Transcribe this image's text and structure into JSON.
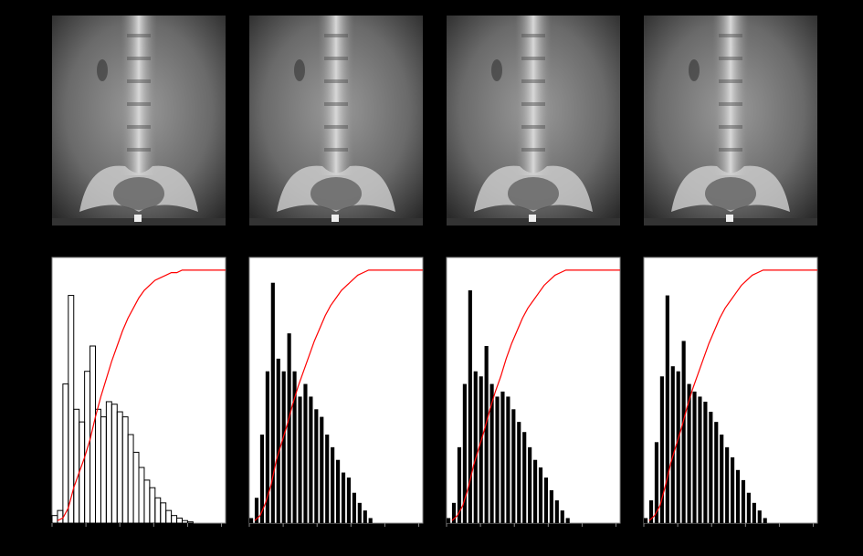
{
  "chart_data": [
    {
      "type": "histogram",
      "histtype": "step",
      "color": "#000000",
      "bins": [
        0,
        8,
        16,
        24,
        32,
        40,
        48,
        56,
        64,
        72,
        80,
        88,
        96,
        104,
        112,
        120,
        128,
        136,
        144,
        152,
        160,
        168,
        176,
        184,
        192,
        200,
        208,
        216,
        224,
        232,
        240,
        248,
        256
      ],
      "counts": [
        0.03,
        0.05,
        0.55,
        0.9,
        0.45,
        0.4,
        0.6,
        0.7,
        0.45,
        0.42,
        0.48,
        0.47,
        0.44,
        0.42,
        0.35,
        0.28,
        0.22,
        0.17,
        0.14,
        0.1,
        0.08,
        0.05,
        0.03,
        0.02,
        0.01,
        0.005,
        0,
        0,
        0,
        0,
        0,
        0
      ],
      "cdf": {
        "color": "#ff0000",
        "x": [
          8,
          16,
          24,
          32,
          40,
          48,
          56,
          64,
          72,
          80,
          88,
          96,
          104,
          112,
          120,
          128,
          136,
          144,
          152,
          160,
          168,
          176,
          184,
          192,
          200,
          208,
          216,
          224,
          232,
          240,
          248,
          256
        ],
        "values": [
          0.01,
          0.02,
          0.06,
          0.14,
          0.2,
          0.26,
          0.33,
          0.42,
          0.5,
          0.57,
          0.64,
          0.7,
          0.76,
          0.81,
          0.85,
          0.89,
          0.92,
          0.94,
          0.96,
          0.97,
          0.98,
          0.99,
          0.99,
          1,
          1,
          1,
          1,
          1,
          1,
          1,
          1,
          1
        ]
      },
      "xlim": [
        0,
        256
      ],
      "ylim": [
        0,
        1.05
      ],
      "xticks": [
        0,
        50,
        100,
        150,
        200,
        250
      ]
    },
    {
      "type": "histogram",
      "histtype": "bar",
      "color": "#000000",
      "bins": [
        0,
        8,
        16,
        24,
        32,
        40,
        48,
        56,
        64,
        72,
        80,
        88,
        96,
        104,
        112,
        120,
        128,
        136,
        144,
        152,
        160,
        168,
        176,
        184,
        192,
        200,
        208,
        216,
        224,
        232,
        240,
        248,
        256
      ],
      "counts": [
        0.02,
        0.1,
        0.35,
        0.6,
        0.95,
        0.65,
        0.6,
        0.75,
        0.6,
        0.5,
        0.55,
        0.5,
        0.45,
        0.42,
        0.35,
        0.3,
        0.25,
        0.2,
        0.18,
        0.12,
        0.08,
        0.05,
        0.02,
        0,
        0,
        0,
        0,
        0,
        0,
        0,
        0,
        0
      ],
      "cdf": {
        "color": "#ff0000",
        "x": [
          8,
          16,
          24,
          32,
          40,
          48,
          56,
          64,
          72,
          80,
          88,
          96,
          104,
          112,
          120,
          128,
          136,
          144,
          152,
          160,
          168,
          176,
          184,
          192,
          200,
          208,
          216,
          224,
          232,
          240,
          248,
          256
        ],
        "values": [
          0.01,
          0.03,
          0.08,
          0.15,
          0.25,
          0.32,
          0.39,
          0.47,
          0.54,
          0.6,
          0.66,
          0.72,
          0.77,
          0.82,
          0.86,
          0.89,
          0.92,
          0.94,
          0.96,
          0.98,
          0.99,
          1,
          1,
          1,
          1,
          1,
          1,
          1,
          1,
          1,
          1,
          1
        ]
      },
      "xlim": [
        0,
        256
      ],
      "ylim": [
        0,
        1.05
      ],
      "xticks": [
        0,
        50,
        100,
        150,
        200,
        250
      ]
    },
    {
      "type": "histogram",
      "histtype": "bar",
      "color": "#000000",
      "bins": [
        0,
        8,
        16,
        24,
        32,
        40,
        48,
        56,
        64,
        72,
        80,
        88,
        96,
        104,
        112,
        120,
        128,
        136,
        144,
        152,
        160,
        168,
        176,
        184,
        192,
        200,
        208,
        216,
        224,
        232,
        240,
        248,
        256
      ],
      "counts": [
        0.02,
        0.08,
        0.3,
        0.55,
        0.92,
        0.6,
        0.58,
        0.7,
        0.55,
        0.5,
        0.52,
        0.5,
        0.45,
        0.4,
        0.36,
        0.3,
        0.25,
        0.22,
        0.18,
        0.13,
        0.09,
        0.05,
        0.02,
        0,
        0,
        0,
        0,
        0,
        0,
        0,
        0,
        0
      ],
      "cdf": {
        "color": "#ff0000",
        "x": [
          8,
          16,
          24,
          32,
          40,
          48,
          56,
          64,
          72,
          80,
          88,
          96,
          104,
          112,
          120,
          128,
          136,
          144,
          152,
          160,
          168,
          176,
          184,
          192,
          200,
          208,
          216,
          224,
          232,
          240,
          248,
          256
        ],
        "values": [
          0.01,
          0.03,
          0.07,
          0.14,
          0.23,
          0.3,
          0.37,
          0.45,
          0.52,
          0.58,
          0.65,
          0.71,
          0.76,
          0.81,
          0.85,
          0.88,
          0.91,
          0.94,
          0.96,
          0.98,
          0.99,
          1,
          1,
          1,
          1,
          1,
          1,
          1,
          1,
          1,
          1,
          1
        ]
      },
      "xlim": [
        0,
        256
      ],
      "ylim": [
        0,
        1.05
      ],
      "xticks": [
        0,
        50,
        100,
        150,
        200,
        250
      ]
    },
    {
      "type": "histogram",
      "histtype": "bar",
      "color": "#000000",
      "bins": [
        0,
        8,
        16,
        24,
        32,
        40,
        48,
        56,
        64,
        72,
        80,
        88,
        96,
        104,
        112,
        120,
        128,
        136,
        144,
        152,
        160,
        168,
        176,
        184,
        192,
        200,
        208,
        216,
        224,
        232,
        240,
        248,
        256
      ],
      "counts": [
        0.02,
        0.09,
        0.32,
        0.58,
        0.9,
        0.62,
        0.6,
        0.72,
        0.55,
        0.52,
        0.5,
        0.48,
        0.44,
        0.4,
        0.35,
        0.3,
        0.26,
        0.21,
        0.17,
        0.12,
        0.08,
        0.05,
        0.02,
        0,
        0,
        0,
        0,
        0,
        0,
        0,
        0,
        0
      ],
      "cdf": {
        "color": "#ff0000",
        "x": [
          8,
          16,
          24,
          32,
          40,
          48,
          56,
          64,
          72,
          80,
          88,
          96,
          104,
          112,
          120,
          128,
          136,
          144,
          152,
          160,
          168,
          176,
          184,
          192,
          200,
          208,
          216,
          224,
          232,
          240,
          248,
          256
        ],
        "values": [
          0.01,
          0.03,
          0.07,
          0.15,
          0.24,
          0.31,
          0.38,
          0.46,
          0.53,
          0.59,
          0.65,
          0.71,
          0.76,
          0.81,
          0.85,
          0.88,
          0.91,
          0.94,
          0.96,
          0.98,
          0.99,
          1,
          1,
          1,
          1,
          1,
          1,
          1,
          1,
          1,
          1,
          1
        ]
      },
      "xlim": [
        0,
        256
      ],
      "ylim": [
        0,
        1.05
      ],
      "xticks": [
        0,
        50,
        100,
        150,
        200,
        250
      ]
    }
  ]
}
